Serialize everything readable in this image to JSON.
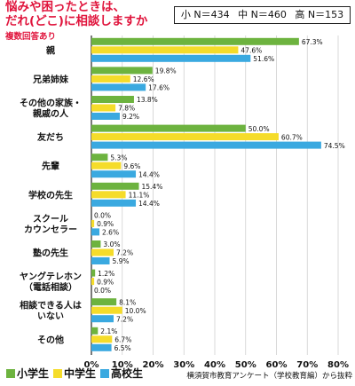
{
  "title_lines": [
    "悩みや困ったときは、",
    "だれ(どこ)に相談しますか"
  ],
  "note": "複数回答あり",
  "sample_sizes": [
    {
      "label": "小 N＝434"
    },
    {
      "label": "中 N＝460"
    },
    {
      "label": "高 N＝153"
    }
  ],
  "source": "横須賀市教育アンケート（学校教育編）から抜粋",
  "chart_data": {
    "type": "bar",
    "orientation": "horizontal",
    "unit": "%",
    "xlim": [
      0,
      80
    ],
    "ticks": [
      "0%",
      "10%",
      "20%",
      "30%",
      "40%",
      "50%",
      "60%",
      "70%",
      "80%"
    ],
    "grid": true,
    "legend_position": "bottom-left",
    "categories": [
      [
        "親"
      ],
      [
        "兄弟姉妹"
      ],
      [
        "その他の家族・",
        "親戚の人"
      ],
      [
        "友だち"
      ],
      [
        "先輩"
      ],
      [
        "学校の先生"
      ],
      [
        "スクール",
        "カウンセラー"
      ],
      [
        "塾の先生"
      ],
      [
        "ヤングテレホン",
        "（電話相談）"
      ],
      [
        "相談できる人は",
        "いない"
      ],
      [
        "その他"
      ]
    ],
    "series": [
      {
        "name": "小学生",
        "color": "#6db33f",
        "values": [
          67.3,
          19.8,
          13.8,
          50.0,
          5.3,
          15.4,
          0.0,
          3.0,
          1.2,
          8.1,
          2.1
        ]
      },
      {
        "name": "中学生",
        "color": "#f5dc2a",
        "values": [
          47.6,
          12.6,
          7.8,
          60.7,
          9.6,
          11.1,
          0.9,
          7.2,
          0.9,
          10.0,
          6.7
        ]
      },
      {
        "name": "高校生",
        "color": "#3aa9e0",
        "values": [
          51.6,
          17.6,
          9.2,
          74.5,
          14.4,
          14.4,
          2.6,
          5.9,
          0.0,
          7.2,
          6.5
        ]
      }
    ]
  }
}
